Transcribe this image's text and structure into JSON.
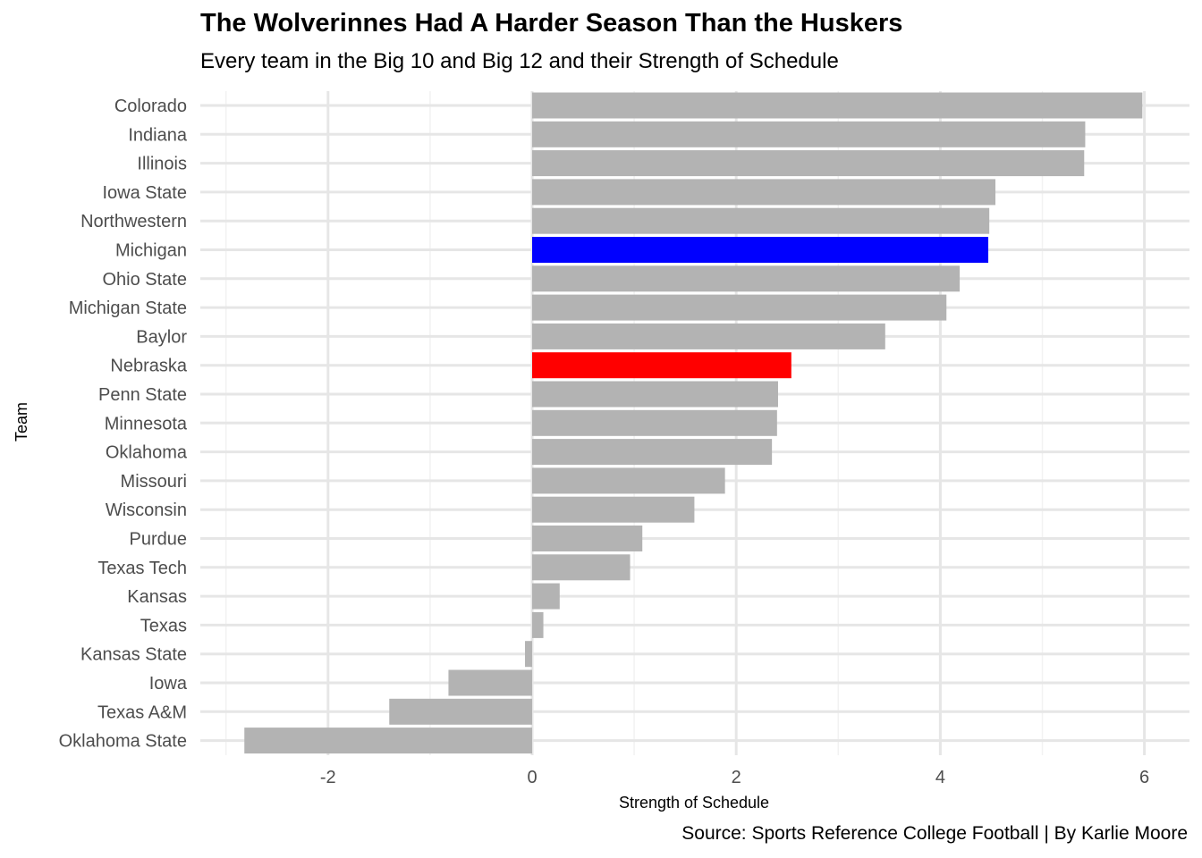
{
  "chart_data": {
    "type": "bar",
    "orientation": "horizontal",
    "title": "The Wolverinnes Had A Harder Season Than the Huskers",
    "subtitle": "Every team in the Big 10 and Big 12 and their Strength of Schedule",
    "caption": "Source: Sports Reference College Football | By Karlie Moore",
    "xlabel": "Strength of Schedule",
    "ylabel": "Team",
    "xlim": [
      -3.2,
      6.4
    ],
    "xticks": [
      -2,
      0,
      2,
      4,
      6
    ],
    "grid": true,
    "legend": "none",
    "default_color": "#b3b3b3",
    "categories": [
      "Colorado",
      "Indiana",
      "Illinois",
      "Iowa State",
      "Northwestern",
      "Michigan",
      "Ohio State",
      "Michigan State",
      "Baylor",
      "Nebraska",
      "Penn State",
      "Minnesota",
      "Oklahoma",
      "Missouri",
      "Wisconsin",
      "Purdue",
      "Texas Tech",
      "Kansas",
      "Texas",
      "Kansas State",
      "Iowa",
      "Texas A&M",
      "Oklahoma State"
    ],
    "values": [
      5.98,
      5.42,
      5.41,
      4.54,
      4.48,
      4.47,
      4.19,
      4.06,
      3.46,
      2.54,
      2.41,
      2.4,
      2.35,
      1.89,
      1.59,
      1.08,
      0.96,
      0.27,
      0.11,
      -0.07,
      -0.82,
      -1.4,
      -2.82
    ],
    "highlights": {
      "Michigan": "#0000ff",
      "Nebraska": "#ff0000"
    }
  }
}
